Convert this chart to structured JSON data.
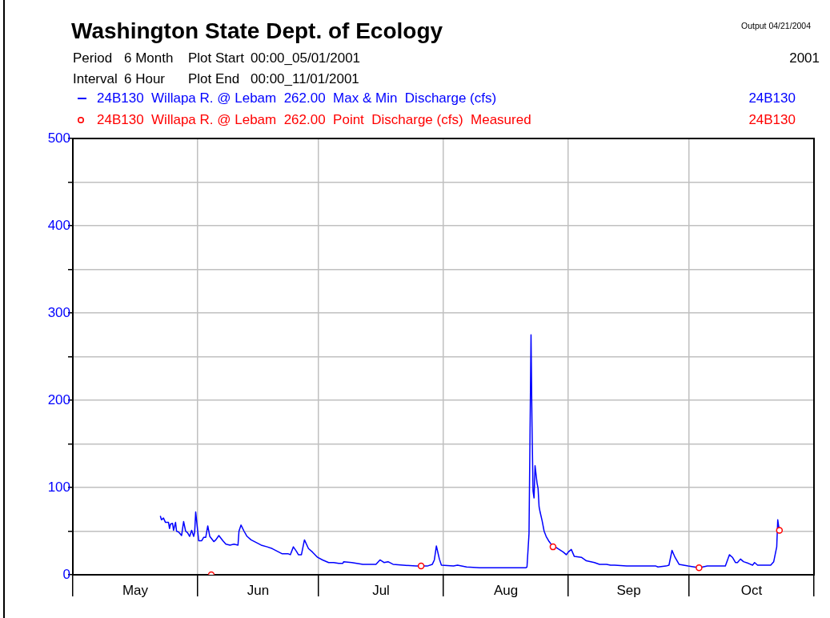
{
  "chart_data": {
    "type": "line",
    "title": "Washington State Dept. of Ecology",
    "subtitle": "Period  6 Month  Plot Start  00:00_05/01/2001\nInterval  6 Hour  Plot End  00:00_11/01/2001",
    "annotations": [
      "Output 04/21/2004",
      "2001",
      "24B130",
      "24B130"
    ],
    "legend": "top left",
    "grid": true,
    "xlim": [
      "2001-05-01",
      "2001-11-01"
    ],
    "xticks": [
      {
        "value": "2001-05-01",
        "label": null
      },
      {
        "value": "2001-05-16T12:00",
        "label": "May"
      },
      {
        "value": "2001-06-01",
        "label": null
      },
      {
        "value": "2001-06-16",
        "label": "Jun"
      },
      {
        "value": "2001-07-01",
        "label": null
      },
      {
        "value": "2001-07-16T12:00",
        "label": "Jul"
      },
      {
        "value": "2001-08-01",
        "label": null
      },
      {
        "value": "2001-08-16T12:00",
        "label": "Aug"
      },
      {
        "value": "2001-09-01",
        "label": null
      },
      {
        "value": "2001-09-16",
        "label": "Sep"
      },
      {
        "value": "2001-10-01",
        "label": null
      },
      {
        "value": "2001-10-16T12:00",
        "label": "Oct"
      },
      {
        "value": "2001-11-01",
        "label": null
      }
    ],
    "ylim": [
      0,
      500
    ],
    "yticks": [
      0,
      {
        "value": 50,
        "label": null
      },
      100,
      {
        "value": 150,
        "label": null
      },
      200,
      {
        "value": 250,
        "label": null
      },
      300,
      {
        "value": 350,
        "label": null
      },
      400,
      {
        "value": 450,
        "label": null
      },
      500
    ],
    "series": [
      {
        "name": "24B130  Willapa R. @ Lebam  262.00  Max & Min  Discharge (cfs)",
        "color": "#0000ff",
        "marker": "none",
        "line_style": "solid",
        "x": [
          "2001-05-22T18:00",
          "2001-05-23T00:00",
          "2001-05-23T12:00",
          "2001-05-24T00:00",
          "2001-05-24T18:00",
          "2001-05-25T00:00",
          "2001-05-25T06:00",
          "2001-05-25T18:00",
          "2001-05-26T00:00",
          "2001-05-26T12:00",
          "2001-05-26T18:00",
          "2001-05-27T06:00",
          "2001-05-28T00:00",
          "2001-05-28T12:00",
          "2001-05-29T00:00",
          "2001-05-29T12:00",
          "2001-05-30T00:00",
          "2001-05-30T12:00",
          "2001-05-31T00:00",
          "2001-05-31T06:00",
          "2001-05-31T12:00",
          "2001-06-01T06:00",
          "2001-06-02T00:00",
          "2001-06-02T12:00",
          "2001-06-03T00:00",
          "2001-06-03T12:00",
          "2001-06-04T00:00",
          "2001-06-04T12:00",
          "2001-06-05T00:00",
          "2001-06-05T12:00",
          "2001-06-06T06:00",
          "2001-06-07T06:00",
          "2001-06-08T00:00",
          "2001-06-09T00:00",
          "2001-06-10T00:00",
          "2001-06-11T00:00",
          "2001-06-11T06:00",
          "2001-06-11T18:00",
          "2001-06-12T12:00",
          "2001-06-13T06:00",
          "2001-06-14T06:00",
          "2001-06-15T12:00",
          "2001-06-16T18:00",
          "2001-06-18T06:00",
          "2001-06-19T12:00",
          "2001-06-20T18:00",
          "2001-06-22T00:00",
          "2001-06-23T12:00",
          "2001-06-24T00:00",
          "2001-06-24T18:00",
          "2001-06-25T12:00",
          "2001-06-26T00:00",
          "2001-06-26T18:00",
          "2001-06-27T12:00",
          "2001-06-28T12:00",
          "2001-06-29T12:00",
          "2001-06-30T18:00",
          "2001-07-02T00:00",
          "2001-07-03T12:00",
          "2001-07-04T18:00",
          "2001-07-06T00:00",
          "2001-07-07T00:00",
          "2001-07-07T06:00",
          "2001-07-09T06:00",
          "2001-07-12T00:00",
          "2001-07-15T06:00",
          "2001-07-16T06:00",
          "2001-07-17T06:00",
          "2001-07-18T06:00",
          "2001-07-19T12:00",
          "2001-07-22T00:00",
          "2001-07-25T06:00",
          "2001-07-28T00:00",
          "2001-07-29T06:00",
          "2001-07-29T18:00",
          "2001-07-30T06:00",
          "2001-07-31T00:00",
          "2001-07-31T12:00",
          "2001-08-03T12:00",
          "2001-08-04T12:00",
          "2001-08-06T18:00",
          "2001-08-10T00:00",
          "2001-08-14T00:00",
          "2001-08-18T00:00",
          "2001-08-21T12:00",
          "2001-08-21T18:00",
          "2001-08-22T06:00",
          "2001-08-22T18:00",
          "2001-08-23T00:00",
          "2001-08-23T06:00",
          "2001-08-23T12:00",
          "2001-08-23T18:00",
          "2001-08-24T06:00",
          "2001-08-24T12:00",
          "2001-08-24T18:00",
          "2001-08-25T00:00",
          "2001-08-25T12:00",
          "2001-08-26T00:00",
          "2001-08-26T12:00",
          "2001-08-27T06:00",
          "2001-08-27T18:00",
          "2001-08-28T06:00",
          "2001-08-28T18:00",
          "2001-08-29T18:00",
          "2001-08-30T18:00",
          "2001-08-31T12:00",
          "2001-09-01T00:00",
          "2001-09-01T18:00",
          "2001-09-02T12:00",
          "2001-09-04T06:00",
          "2001-09-05T12:00",
          "2001-09-07T12:00",
          "2001-09-08T18:00",
          "2001-09-10T12:00",
          "2001-09-11T12:00",
          "2001-09-12T12:00",
          "2001-09-15T12:00",
          "2001-09-22T18:00",
          "2001-09-23T06:00",
          "2001-09-25T06:00",
          "2001-09-26T00:00",
          "2001-09-26T18:00",
          "2001-09-27T12:00",
          "2001-09-28T12:00",
          "2001-09-30T18:00",
          "2001-10-03T12:00",
          "2001-10-05T12:00",
          "2001-10-07T12:00",
          "2001-10-10T00:00",
          "2001-10-11T00:00",
          "2001-10-11T18:00",
          "2001-10-12T12:00",
          "2001-10-13T00:00",
          "2001-10-13T18:00",
          "2001-10-14T12:00",
          "2001-10-15T18:00",
          "2001-10-16T18:00",
          "2001-10-17T06:00",
          "2001-10-18T00:00",
          "2001-10-21T06:00",
          "2001-10-22T00:00",
          "2001-10-22T18:00",
          "2001-10-23T00:00",
          "2001-10-23T06:00",
          "2001-10-23T12:00"
        ],
        "values": [
          67,
          63,
          65,
          60,
          60,
          53,
          58,
          59,
          51,
          60,
          50,
          49,
          45,
          61,
          50,
          48,
          44,
          51,
          44,
          49,
          72,
          39,
          39,
          43,
          43,
          56,
          44,
          41,
          38,
          40,
          45,
          39,
          35,
          34,
          35,
          34,
          50,
          57,
          50,
          44,
          40,
          37,
          34,
          32,
          30,
          27,
          24,
          24,
          23,
          32,
          27,
          23,
          23,
          40,
          30,
          26,
          20,
          17,
          14,
          14,
          13,
          13,
          15,
          14,
          12,
          12,
          17,
          14,
          15,
          12,
          11,
          10,
          10,
          12,
          17,
          33,
          18,
          11,
          10,
          11,
          9,
          8,
          8,
          8,
          8,
          9,
          47,
          275,
          170,
          96,
          88,
          125,
          105,
          99,
          78,
          72,
          62,
          50,
          44,
          38,
          35,
          32,
          32,
          29,
          26,
          23,
          26,
          29,
          21,
          20,
          16,
          14,
          12,
          12,
          11,
          11,
          10,
          10,
          9,
          10,
          11,
          28,
          20,
          12,
          10,
          8,
          10,
          10,
          10,
          23,
          20,
          14,
          14,
          18,
          15,
          13,
          11,
          14,
          11,
          11,
          15,
          32,
          63,
          55,
          52
        ]
      },
      {
        "name": "24B130  Willapa R. @ Lebam  262.00  Point  Discharge (cfs)  Measured",
        "type": "scatter",
        "color": "#ff0000",
        "marker": "circle",
        "x": [
          "2001-06-04T09:00",
          "2001-07-26T11:00",
          "2001-08-28T05:00",
          "2001-10-03T11:00",
          "2001-10-23T10:00"
        ],
        "values": [
          0,
          10,
          32,
          8,
          51
        ]
      }
    ]
  }
}
